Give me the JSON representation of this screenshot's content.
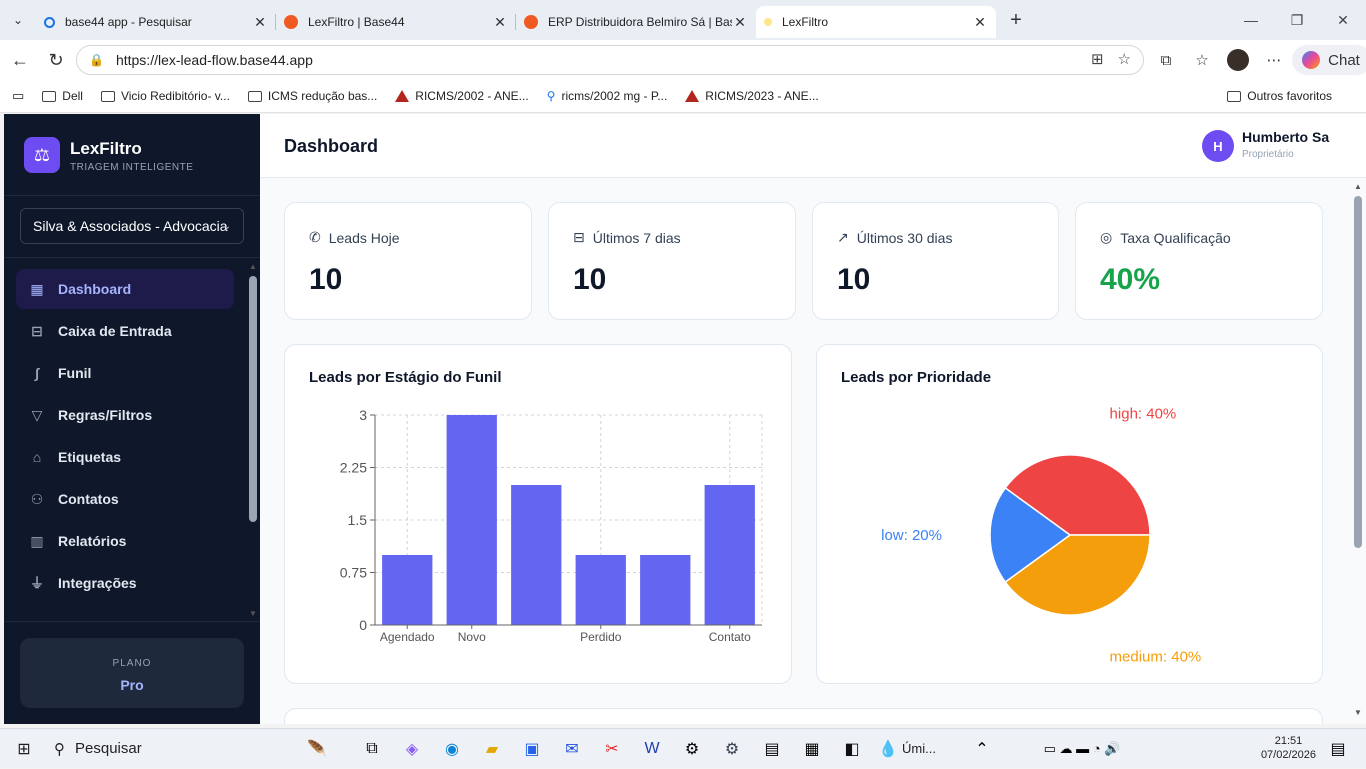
{
  "browser": {
    "tabs": [
      {
        "title": "base44 app - Pesquisar",
        "color": "#1a73e8"
      },
      {
        "title": "LexFiltro | Base44",
        "color": "#f05a22"
      },
      {
        "title": "ERP Distribuidora Belmiro Sá | Base44",
        "color": "#f05a22"
      },
      {
        "title": "LexFiltro",
        "color": "#f59e0b"
      }
    ],
    "url": "https://lex-lead-flow.base44.app",
    "chat_label": "Chat",
    "bookmarks": [
      {
        "label": "Dell",
        "icon": "folder-icon"
      },
      {
        "label": "Vicio Redibitório- v...",
        "icon": "folder-icon"
      },
      {
        "label": "ICMS redução bas...",
        "icon": "folder-icon"
      },
      {
        "label": "RICMS/2002 - ANE...",
        "icon": "triangle-icon"
      },
      {
        "label": "ricms/2002 mg - P...",
        "icon": "search-icon"
      },
      {
        "label": "RICMS/2023 - ANE...",
        "icon": "triangle-icon"
      }
    ],
    "other_favorites": "Outros favoritos"
  },
  "sidebar": {
    "brand": "LexFiltro",
    "brand_subtitle": "TRIAGEM INTELIGENTE",
    "org": "Silva & Associados - Advocacia",
    "items": [
      {
        "label": "Dashboard",
        "icon": "dashboard-icon",
        "active": true
      },
      {
        "label": "Caixa de Entrada",
        "icon": "inbox-icon"
      },
      {
        "label": "Funil",
        "icon": "funnel-path-icon"
      },
      {
        "label": "Regras/Filtros",
        "icon": "filter-icon"
      },
      {
        "label": "Etiquetas",
        "icon": "tags-icon"
      },
      {
        "label": "Contatos",
        "icon": "users-icon"
      },
      {
        "label": "Relatórios",
        "icon": "bar-chart-icon"
      },
      {
        "label": "Integrações",
        "icon": "plug-icon"
      }
    ],
    "plan_label": "PLANO",
    "plan_value": "Pro"
  },
  "header": {
    "title": "Dashboard",
    "user_initial": "H",
    "user_name": "Humberto Sa",
    "user_role": "Proprietário"
  },
  "kpis": [
    {
      "label": "Leads Hoje",
      "value": "10",
      "icon": "phone-incoming-icon"
    },
    {
      "label": "Últimos 7 dias",
      "value": "10",
      "icon": "inbox-icon"
    },
    {
      "label": "Últimos 30 dias",
      "value": "10",
      "icon": "trending-up-icon"
    },
    {
      "label": "Taxa Qualificação",
      "value": "40%",
      "icon": "check-circle-icon",
      "color": "#16a34a"
    }
  ],
  "bar_chart_title": "Leads por Estágio do Funil",
  "pie_chart_title": "Leads por Prioridade",
  "chart_data": [
    {
      "type": "bar",
      "title": "Leads por Estágio do Funil",
      "categories": [
        "Agendado",
        "Novo",
        "",
        "Perdido",
        "",
        "Contato"
      ],
      "values": [
        1,
        3,
        2,
        1,
        1,
        2
      ],
      "ylim": [
        0,
        3
      ],
      "yticks": [
        "0",
        "0.75",
        "1.5",
        "2.25",
        "3"
      ],
      "grid": true,
      "color": "#6366f1"
    },
    {
      "type": "pie",
      "title": "Leads por Prioridade",
      "slices": [
        {
          "label": "high: 40%",
          "value": 40,
          "color": "#ef4444"
        },
        {
          "label": "medium: 40%",
          "value": 40,
          "color": "#f59e0b"
        },
        {
          "label": "low: 20%",
          "value": 20,
          "color": "#3b82f6"
        }
      ]
    }
  ],
  "taskbar": {
    "search": "Pesquisar",
    "time": "21:51",
    "date": "07/02/2026",
    "weather": "Úmi..."
  }
}
